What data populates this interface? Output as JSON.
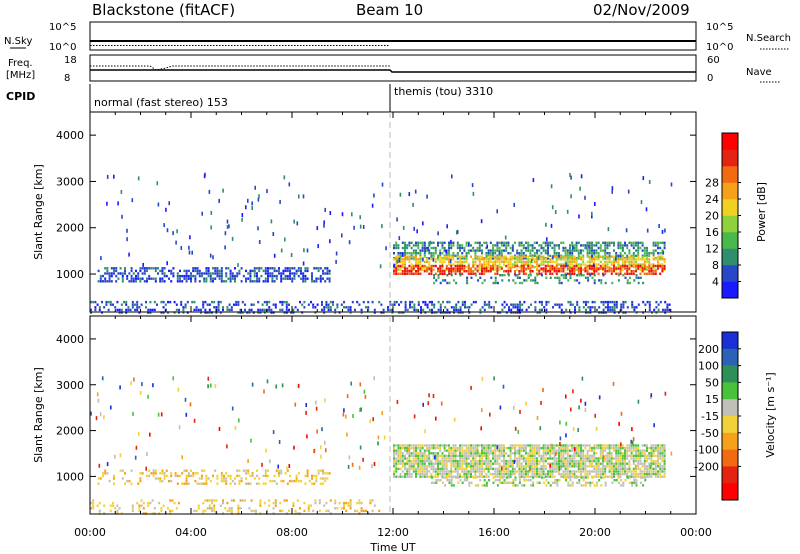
{
  "header": {
    "station": "Blackstone (fitACF)",
    "beam": "Beam 10",
    "date": "02/Nov/2009"
  },
  "panels": {
    "nsky_label": "N.Sky",
    "nsky_ticks": [
      "10^5",
      "10^0"
    ],
    "nsearch_label": "N.Search",
    "nsearch_ticks": [
      "10^5",
      "10^0"
    ],
    "freq_label": "Freq.",
    "freq_unit": "[MHz]",
    "freq_ticks": [
      "18",
      "8"
    ],
    "nave_label": "Nave",
    "nave_ticks": [
      "60",
      "0"
    ],
    "cpid_label": "CPID",
    "cpid_segments": [
      {
        "label": "normal (fast stereo) 153",
        "start_hour": 0
      },
      {
        "label": "themis (tou) 3310",
        "start_hour": 12
      }
    ]
  },
  "chart_data": [
    {
      "type": "heatmap",
      "name": "power-panel",
      "ylabel": "Slant Range [km]",
      "ylim": [
        180,
        4500
      ],
      "yticks": [
        1000,
        2000,
        3000,
        4000
      ],
      "xlim": [
        0,
        24
      ],
      "colorbar_label": "Power [dB]",
      "colorbar_ticks": [
        "4",
        "8",
        "12",
        "16",
        "20",
        "24",
        "28"
      ],
      "colorbar_colors": [
        "#1a1aff",
        "#2846c8",
        "#2f8f6c",
        "#48b94a",
        "#8fd13a",
        "#f0d020",
        "#f5a21a",
        "#f26a12",
        "#e52313",
        "#ff0000"
      ],
      "bands": [
        {
          "t0": 0.3,
          "t1": 9.5,
          "r0": 820,
          "r1": 1150,
          "level": 1,
          "density": 0.55
        },
        {
          "t0": 12.0,
          "t1": 22.8,
          "r0": 1350,
          "r1": 1700,
          "level": 2,
          "density": 0.6
        },
        {
          "t0": 12.0,
          "t1": 22.8,
          "r0": 1100,
          "r1": 1400,
          "level": 5,
          "density": 0.7
        },
        {
          "t0": 12.0,
          "t1": 22.8,
          "r0": 980,
          "r1": 1200,
          "level": 8,
          "density": 0.6
        },
        {
          "t0": 13.5,
          "t1": 22.0,
          "r0": 800,
          "r1": 1000,
          "level": 2,
          "density": 0.3
        },
        {
          "t0": 0,
          "t1": 23,
          "r0": 190,
          "r1": 420,
          "level": 1,
          "density": 0.35
        }
      ]
    },
    {
      "type": "heatmap",
      "name": "velocity-panel",
      "ylabel": "Slant Range [km]",
      "ylim": [
        180,
        4500
      ],
      "yticks": [
        1000,
        2000,
        3000,
        4000
      ],
      "xlim": [
        0,
        24
      ],
      "xlabel": "Time UT",
      "xticks": [
        "00:00",
        "04:00",
        "08:00",
        "12:00",
        "16:00",
        "20:00",
        "00:00"
      ],
      "colorbar_label": "Velocity [m s⁻¹]",
      "colorbar_ticks": [
        "200",
        "100",
        "50",
        "15",
        "-15",
        "-50",
        "-100",
        "-200"
      ],
      "colorbar_colors": [
        "#1a2fd6",
        "#2a62b5",
        "#2f8f58",
        "#49c23a",
        "#c0c0b8",
        "#f2d23a",
        "#f5a21a",
        "#f26a12",
        "#e52313",
        "#ff0000"
      ],
      "bands": [
        {
          "t0": 0.3,
          "t1": 9.5,
          "r0": 820,
          "r1": 1150,
          "level": 5,
          "density": 0.35
        },
        {
          "t0": 12.0,
          "t1": 22.8,
          "r0": 1000,
          "r1": 1700,
          "level": 4,
          "density": 0.85
        },
        {
          "t0": 13.5,
          "t1": 22.0,
          "r0": 800,
          "r1": 1000,
          "level": 4,
          "density": 0.4
        },
        {
          "t0": 0,
          "t1": 11.5,
          "r0": 190,
          "r1": 500,
          "level": 5,
          "density": 0.25
        }
      ]
    }
  ]
}
